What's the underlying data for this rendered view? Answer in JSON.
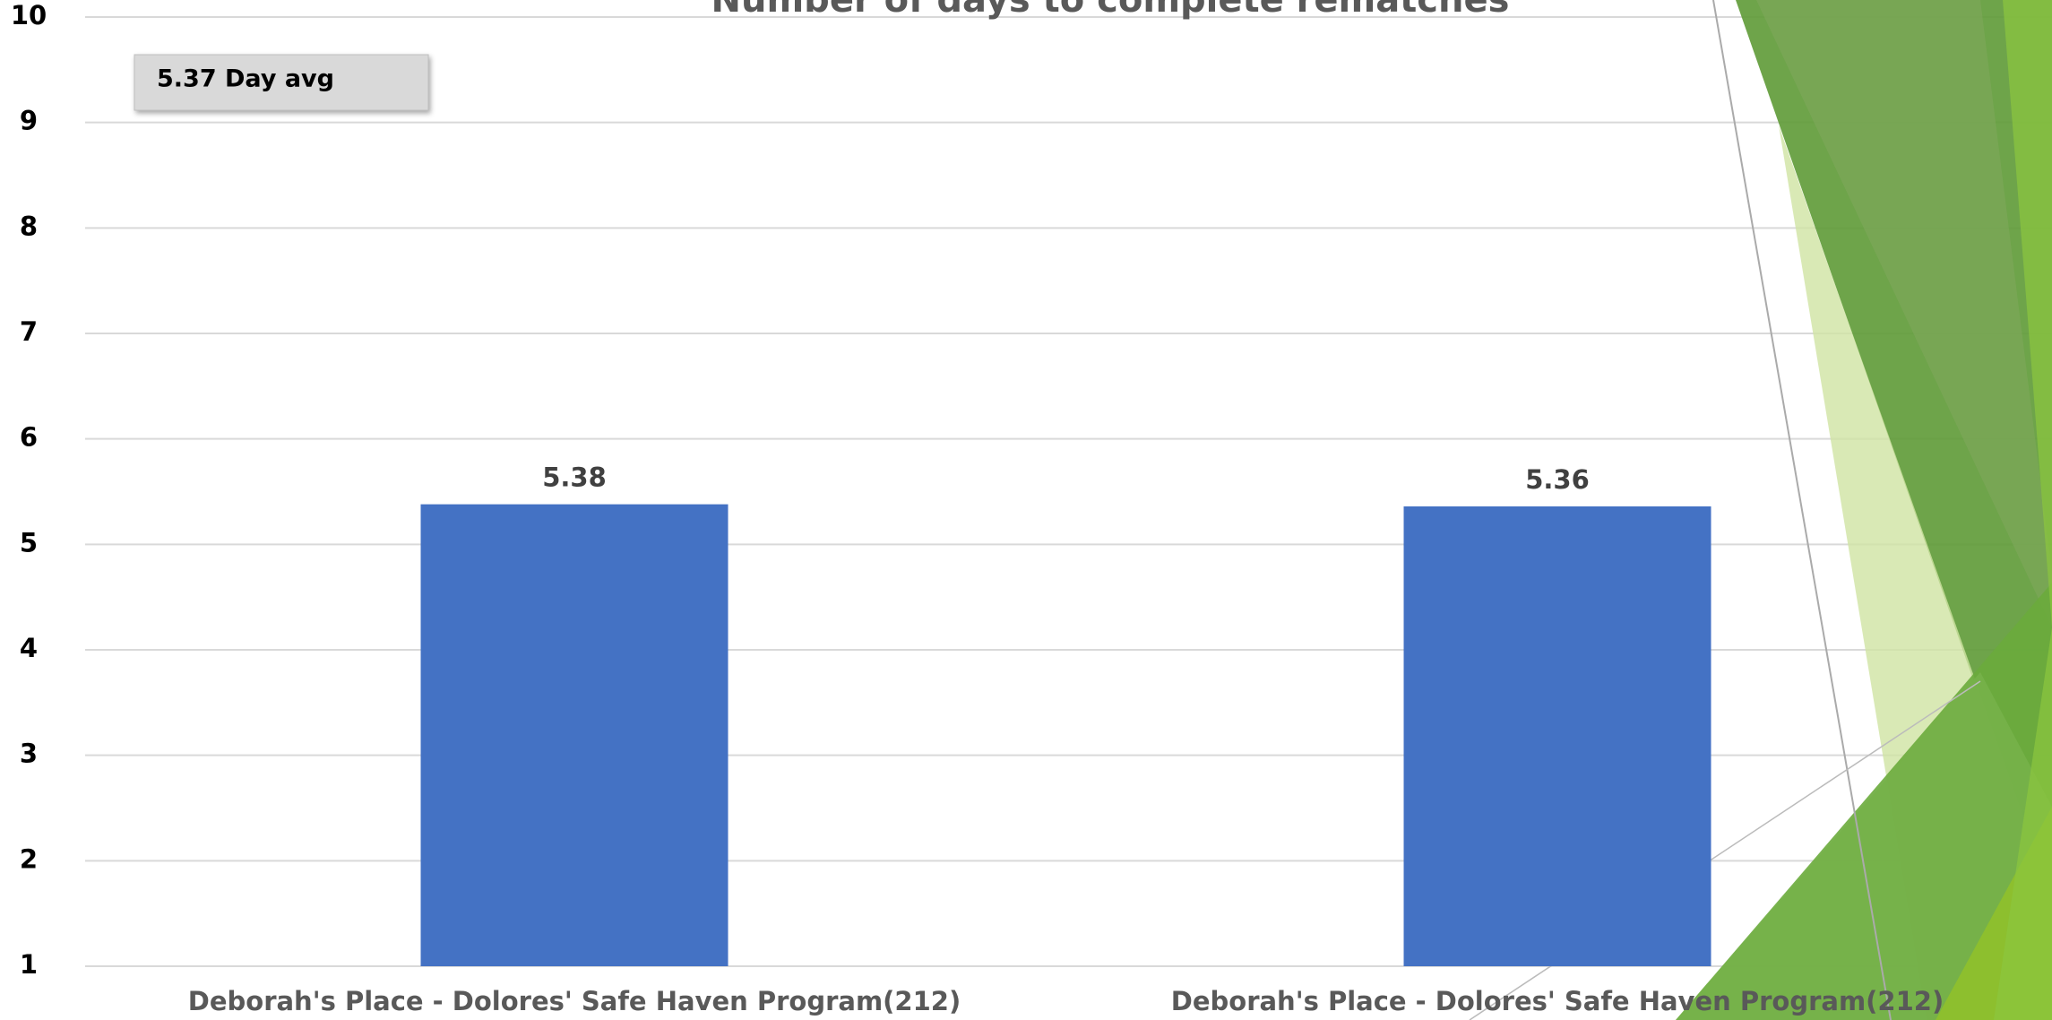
{
  "chart_data": {
    "type": "bar",
    "title": "Number of days to complete rematches",
    "categories": [
      "Deborah's Place - Dolores' Safe Haven Program(212)",
      "Deborah's Place - Dolores' Safe Haven Program(212)"
    ],
    "values": [
      5.38,
      5.36
    ],
    "color": "#4472c4",
    "ylim": [
      1,
      10
    ],
    "yticks": [
      1,
      2,
      3,
      4,
      5,
      6,
      7,
      8,
      9,
      10
    ],
    "grid": true,
    "annotation": "5.37  Day avg"
  }
}
